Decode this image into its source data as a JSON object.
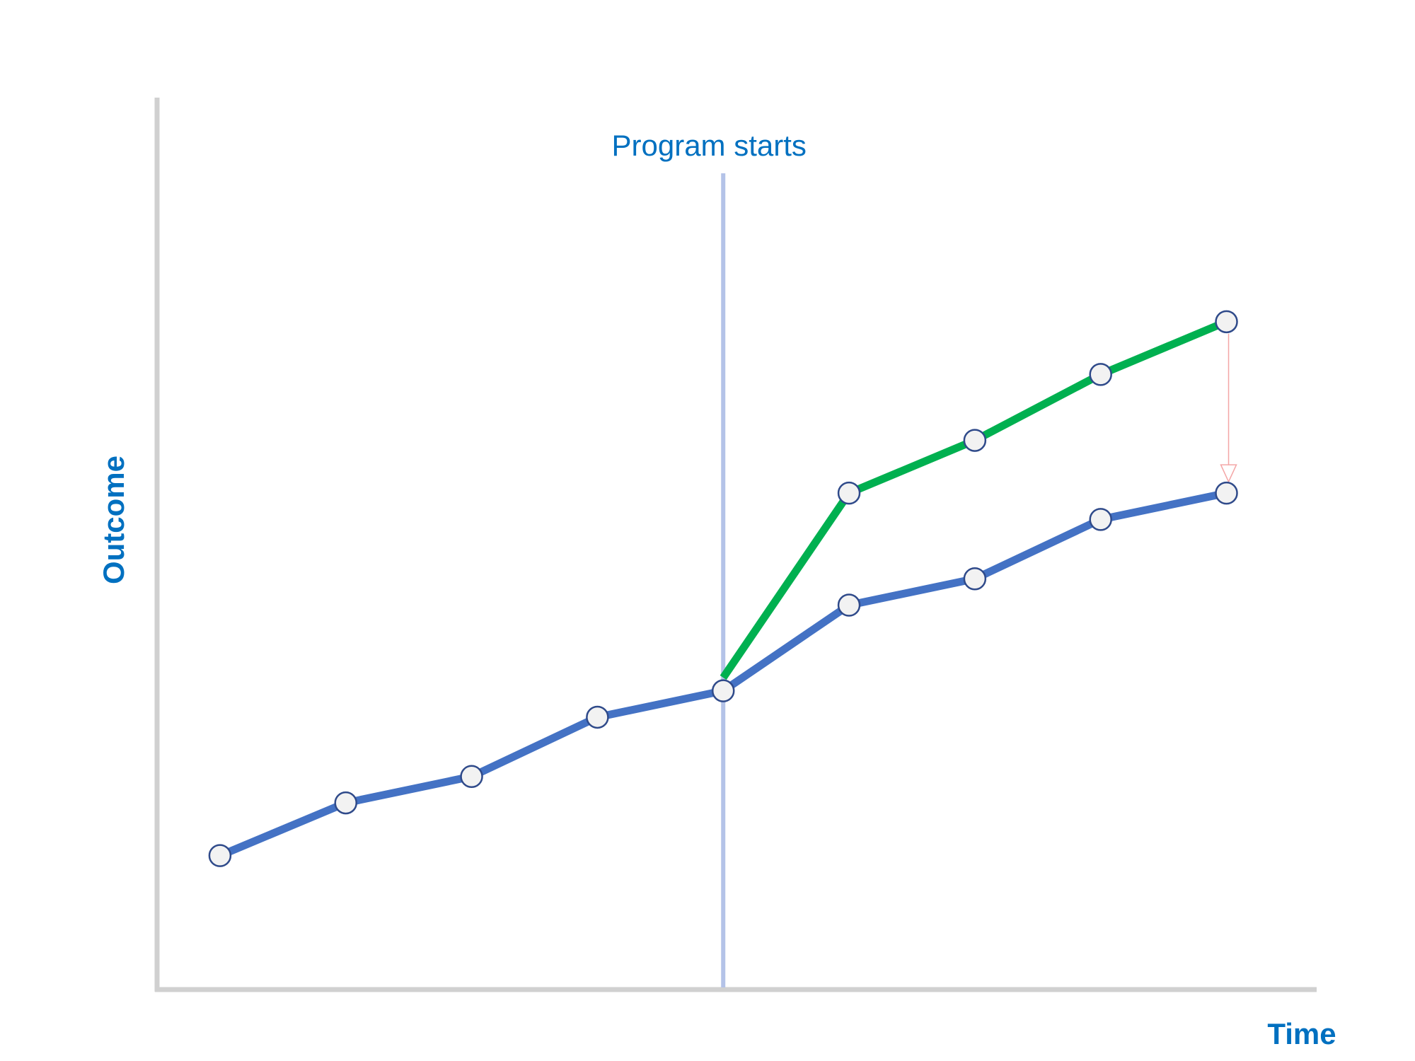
{
  "chart_data": {
    "type": "line",
    "title": "",
    "xlabel": "Time",
    "ylabel": "Outcome",
    "grid": false,
    "legend": "none",
    "event_annotation": {
      "label": "Program starts",
      "x": 5,
      "color": "#b4c3e8"
    },
    "xlim": [
      0.5,
      9.7
    ],
    "ylim": [
      -0.5,
      13
    ],
    "series": [
      {
        "color": "#4472c4",
        "x": [
          1,
          2,
          3,
          4,
          5,
          6,
          7,
          8,
          9
        ],
        "values": [
          1.5,
          2.3,
          2.7,
          3.6,
          4.0,
          5.3,
          5.7,
          6.6,
          7.0
        ]
      },
      {
        "color": "#00b050",
        "x": [
          5,
          6,
          7,
          8,
          9
        ],
        "values": [
          4.2,
          7.0,
          7.8,
          8.8,
          9.6
        ]
      }
    ],
    "effect_arrow": {
      "x": 9,
      "from": 9.6,
      "to": 7.0,
      "color": "#f4a6a6"
    }
  },
  "colors": {
    "axis": "#d0d0d0",
    "label": "#0070c0",
    "marker_fill": "#f2f2f2",
    "marker_stroke": "#2f4a8a"
  }
}
